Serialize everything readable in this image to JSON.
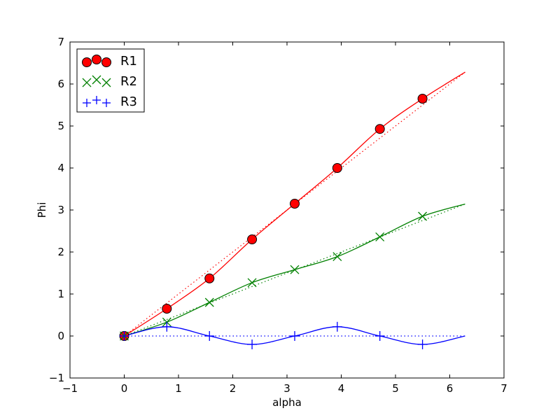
{
  "chart_data": {
    "type": "line",
    "xlabel": "alpha",
    "ylabel": "Phi",
    "xlim": [
      -1,
      7
    ],
    "ylim": [
      -1,
      7
    ],
    "xticks": [
      -1,
      0,
      1,
      2,
      3,
      4,
      5,
      6,
      7
    ],
    "yticks": [
      -1,
      0,
      1,
      2,
      3,
      4,
      5,
      6,
      7
    ],
    "xtick_labels": [
      "−1",
      "0",
      "1",
      "2",
      "3",
      "4",
      "5",
      "6",
      "7"
    ],
    "ytick_labels": [
      "−1",
      "0",
      "1",
      "2",
      "3",
      "4",
      "5",
      "6",
      "7"
    ],
    "grid": false,
    "legend": {
      "placement": "top-left",
      "entries": [
        {
          "series": "R1",
          "label": "R1"
        },
        {
          "series": "R2",
          "label": "R2"
        },
        {
          "series": "R3",
          "label": "R3"
        }
      ]
    },
    "x_markers": [
      0,
      0.785,
      1.571,
      2.356,
      3.142,
      3.927,
      4.712,
      5.498
    ],
    "series": [
      {
        "name": "R1",
        "color": "#ff0000",
        "marker": "circle",
        "marker_fill": "#ff0000",
        "marker_values": [
          0,
          0.65,
          1.37,
          2.3,
          3.15,
          4.0,
          4.93,
          5.65
        ],
        "reference_line": {
          "style": "dotted",
          "x": [
            0,
            6.283
          ],
          "y": [
            0,
            6.283
          ]
        }
      },
      {
        "name": "R2",
        "color": "#008000",
        "marker": "x",
        "marker_values": [
          0,
          0.33,
          0.8,
          1.27,
          1.58,
          1.89,
          2.36,
          2.85
        ],
        "reference_line": {
          "style": "dotted",
          "x": [
            0,
            6.283
          ],
          "y": [
            0,
            3.142
          ]
        }
      },
      {
        "name": "R3",
        "color": "#0000ff",
        "marker": "plus",
        "marker_values": [
          0,
          0.22,
          0,
          -0.2,
          0,
          0.22,
          0,
          -0.2
        ],
        "reference_line": {
          "style": "dotted",
          "x": [
            0,
            6.283
          ],
          "y": [
            0,
            0
          ]
        }
      }
    ]
  }
}
